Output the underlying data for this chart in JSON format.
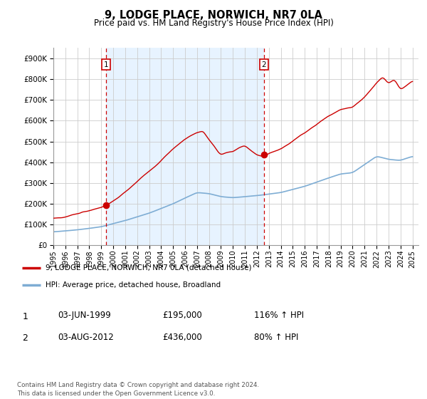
{
  "title": "9, LODGE PLACE, NORWICH, NR7 0LA",
  "subtitle": "Price paid vs. HM Land Registry's House Price Index (HPI)",
  "legend_line1": "9, LODGE PLACE, NORWICH, NR7 0LA (detached house)",
  "legend_line2": "HPI: Average price, detached house, Broadland",
  "annotation1_label": "1",
  "annotation1_date": "03-JUN-1999",
  "annotation1_price": "£195,000",
  "annotation1_hpi": "116% ↑ HPI",
  "annotation2_label": "2",
  "annotation2_date": "03-AUG-2012",
  "annotation2_price": "£436,000",
  "annotation2_hpi": "80% ↑ HPI",
  "footnote": "Contains HM Land Registry data © Crown copyright and database right 2024.\nThis data is licensed under the Open Government Licence v3.0.",
  "red_line_color": "#cc0000",
  "blue_line_color": "#7eadd4",
  "dashed_vline_color": "#cc0000",
  "shading_color": "#ddeeff",
  "background_color": "#ffffff",
  "grid_color": "#cccccc",
  "ylim": [
    0,
    950000
  ],
  "yticks": [
    0,
    100000,
    200000,
    300000,
    400000,
    500000,
    600000,
    700000,
    800000,
    900000
  ],
  "sale1_year": 1999.42,
  "sale1_value": 195000,
  "sale2_year": 2012.58,
  "sale2_value": 436000,
  "xmin": 1995,
  "xmax": 2025.5
}
